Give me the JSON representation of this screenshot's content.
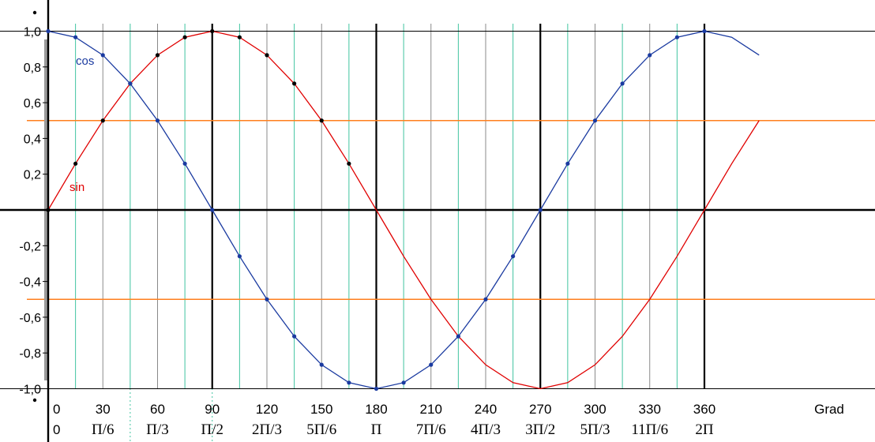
{
  "chart_data": {
    "type": "line",
    "title": "",
    "xlabel": "Grad",
    "ylabel": "",
    "x_unit_label": "Grad",
    "xlim": [
      0,
      382
    ],
    "ylim": [
      -1.0,
      1.0
    ],
    "x_ticks": [
      {
        "deg": 0,
        "deg_label": "0",
        "rad_label": "0"
      },
      {
        "deg": 30,
        "deg_label": "30",
        "rad_label": "Π/6"
      },
      {
        "deg": 60,
        "deg_label": "60",
        "rad_label": "Π/3"
      },
      {
        "deg": 90,
        "deg_label": "90",
        "rad_label": "Π/2"
      },
      {
        "deg": 120,
        "deg_label": "120",
        "rad_label": "2Π/3"
      },
      {
        "deg": 150,
        "deg_label": "150",
        "rad_label": "5Π/6"
      },
      {
        "deg": 180,
        "deg_label": "180",
        "rad_label": "Π"
      },
      {
        "deg": 210,
        "deg_label": "210",
        "rad_label": "7Π/6"
      },
      {
        "deg": 240,
        "deg_label": "240",
        "rad_label": "4Π/3"
      },
      {
        "deg": 270,
        "deg_label": "270",
        "rad_label": "3Π/2"
      },
      {
        "deg": 300,
        "deg_label": "300",
        "rad_label": "5Π/3"
      },
      {
        "deg": 330,
        "deg_label": "330",
        "rad_label": "11Π/6"
      },
      {
        "deg": 360,
        "deg_label": "360",
        "rad_label": "2Π"
      }
    ],
    "y_ticks": [
      {
        "v": 1.0,
        "label": "1,0"
      },
      {
        "v": 0.8,
        "label": "0,8"
      },
      {
        "v": 0.6,
        "label": "0,6"
      },
      {
        "v": 0.4,
        "label": "0,4"
      },
      {
        "v": 0.2,
        "label": "0,2"
      },
      {
        "v": -0.2,
        "label": "-0,2"
      },
      {
        "v": -0.4,
        "label": "-0,4"
      },
      {
        "v": -0.6,
        "label": "-0,6"
      },
      {
        "v": -0.8,
        "label": "-0,8"
      },
      {
        "v": -1.0,
        "label": "-1,0"
      }
    ],
    "gridlines_black_deg": [
      90,
      180,
      270,
      360
    ],
    "gridlines_gray_deg": [
      30,
      60,
      120,
      150,
      210,
      240,
      300,
      330
    ],
    "gridlines_teal_deg": [
      15,
      45,
      75,
      105,
      135,
      165,
      195,
      225,
      255,
      285,
      315,
      345
    ],
    "reference_lines_y": [
      0.5,
      -0.5
    ],
    "series": [
      {
        "name": "sin",
        "color": "#e00000",
        "marker_color": "#000000",
        "line_x": [
          0,
          15,
          30,
          45,
          60,
          75,
          90,
          105,
          120,
          135,
          150,
          165,
          180,
          195,
          210,
          225,
          240,
          255,
          270,
          285,
          300,
          315,
          330,
          345,
          360,
          375,
          390
        ],
        "line_y": [
          0,
          0.259,
          0.5,
          0.707,
          0.866,
          0.966,
          1.0,
          0.966,
          0.866,
          0.707,
          0.5,
          0.259,
          0,
          -0.259,
          -0.5,
          -0.707,
          -0.866,
          -0.966,
          -1.0,
          -0.966,
          -0.866,
          -0.707,
          -0.5,
          -0.259,
          0,
          0.259,
          0.5
        ],
        "marker_x": [
          0,
          15,
          30,
          45,
          60,
          75,
          90,
          105,
          120,
          135,
          150,
          165
        ],
        "marker_y": [
          0,
          0.259,
          0.5,
          0.707,
          0.866,
          0.966,
          1.0,
          0.966,
          0.866,
          0.707,
          0.5,
          0.259
        ]
      },
      {
        "name": "cos",
        "color": "#1a3aa0",
        "marker_color": "#1a3aa0",
        "line_x": [
          0,
          15,
          30,
          45,
          60,
          75,
          90,
          105,
          120,
          135,
          150,
          165,
          180,
          195,
          210,
          225,
          240,
          255,
          270,
          285,
          300,
          315,
          330,
          345,
          360,
          375,
          390
        ],
        "line_y": [
          1.0,
          0.966,
          0.866,
          0.707,
          0.5,
          0.259,
          0,
          -0.259,
          -0.5,
          -0.707,
          -0.866,
          -0.966,
          -1.0,
          -0.966,
          -0.866,
          -0.707,
          -0.5,
          -0.259,
          0,
          0.259,
          0.5,
          0.707,
          0.866,
          0.966,
          1.0,
          0.966,
          0.866
        ],
        "marker_x": [
          0,
          15,
          30,
          45,
          60,
          75,
          90,
          105,
          120,
          135,
          150,
          165,
          180,
          195,
          210,
          225,
          240,
          255,
          270,
          285,
          300,
          315,
          330,
          345,
          360
        ],
        "marker_y": [
          1.0,
          0.966,
          0.866,
          0.707,
          0.5,
          0.259,
          0,
          -0.259,
          -0.5,
          -0.707,
          -0.866,
          -0.966,
          -1.0,
          -0.966,
          -0.866,
          -0.707,
          -0.5,
          -0.259,
          0,
          0.259,
          0.5,
          0.707,
          0.866,
          0.966,
          1.0
        ]
      }
    ],
    "colors": {
      "reference_line": "#ff7f1e",
      "teal_grid": "#40c4a0",
      "gray_grid": "#8a8a8a",
      "axis": "#000000"
    }
  }
}
